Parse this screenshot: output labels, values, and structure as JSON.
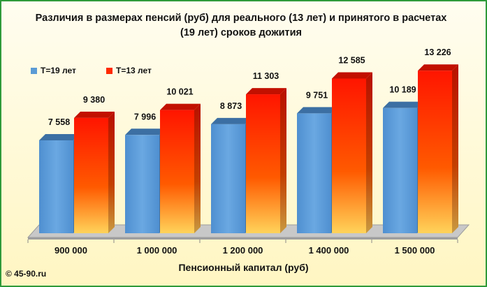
{
  "chart_data": {
    "type": "bar",
    "title": "Различия  в размерах  пенсий  (руб) для  реального  (13 лет) и принятого  в расчетах (19 лет) сроков дожития",
    "xlabel": "Пенсионный  капитал  (руб)",
    "ylabel": "",
    "categories": [
      "900 000",
      "1 000 000",
      "1 200 000",
      "1 400 000",
      "1 500 000"
    ],
    "series": [
      {
        "name": "T=19 лет",
        "values": [
          7558,
          7996,
          8873,
          9751,
          10189
        ],
        "labels": [
          "7 558",
          "7 996",
          "8 873",
          "9 751",
          "10 189"
        ],
        "color": "#5b9bd5"
      },
      {
        "name": "T=13 лет",
        "values": [
          9380,
          10021,
          11303,
          12585,
          13226
        ],
        "labels": [
          "9 380",
          "10 021",
          "11 303",
          "12 585",
          "13 226"
        ],
        "color": "#ff2a00"
      }
    ],
    "ylim": [
      0,
      13500
    ],
    "grid": false,
    "legend": "top-left"
  },
  "credit": "© 45-90.ru",
  "colors": {
    "frame": "#2f9a3a",
    "background": "#fff9d6",
    "floor": "#c8c8c8"
  }
}
